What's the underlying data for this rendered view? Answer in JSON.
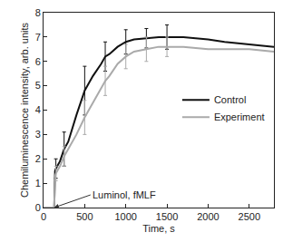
{
  "chart_data": {
    "type": "line",
    "x_label": "Time, s",
    "y_label": "Chemiluminescence intensity, arb. units",
    "x": [
      0,
      100,
      130,
      140,
      150,
      200,
      250,
      300,
      400,
      500,
      600,
      700,
      750,
      800,
      900,
      1000,
      1100,
      1250,
      1400,
      1500,
      1700,
      2000,
      2200,
      2500,
      2800
    ],
    "series": [
      {
        "name": "Control",
        "color": "#111111",
        "values": [
          0,
          0,
          0,
          1.5,
          1.6,
          1.9,
          2.4,
          2.7,
          3.8,
          4.8,
          5.4,
          5.9,
          6.2,
          6.3,
          6.6,
          6.8,
          6.9,
          6.95,
          7.0,
          7.0,
          7.0,
          6.9,
          6.8,
          6.7,
          6.6
        ],
        "error": [
          null,
          null,
          null,
          null,
          0.4,
          null,
          0.7,
          null,
          null,
          1.0,
          null,
          null,
          0.6,
          null,
          null,
          0.5,
          null,
          0.4,
          null,
          0.5,
          null,
          null,
          null,
          null,
          null
        ]
      },
      {
        "name": "Experiment",
        "color": "#aaaaaa",
        "values": [
          0,
          0,
          0,
          1.3,
          1.4,
          1.7,
          2.1,
          2.4,
          3.0,
          3.7,
          4.3,
          4.9,
          5.2,
          5.4,
          5.9,
          6.2,
          6.4,
          6.5,
          6.6,
          6.6,
          6.6,
          6.5,
          6.5,
          6.5,
          6.4
        ],
        "error": [
          null,
          null,
          null,
          null,
          0.3,
          null,
          0.4,
          null,
          null,
          0.7,
          null,
          null,
          0.6,
          null,
          null,
          0.5,
          null,
          0.5,
          null,
          0.4,
          null,
          null,
          null,
          null,
          null
        ]
      }
    ],
    "xlim": [
      0,
      2800
    ],
    "xticks": [
      0,
      500,
      1000,
      1500,
      2000,
      2500
    ],
    "ylim": [
      0,
      8
    ],
    "yticks": [
      0,
      1,
      2,
      3,
      4,
      5,
      6,
      7,
      8
    ],
    "grid": false,
    "legend": "right",
    "annotations": [
      {
        "text": "Luminol, fMLF",
        "x": 130,
        "y": 0
      }
    ]
  }
}
